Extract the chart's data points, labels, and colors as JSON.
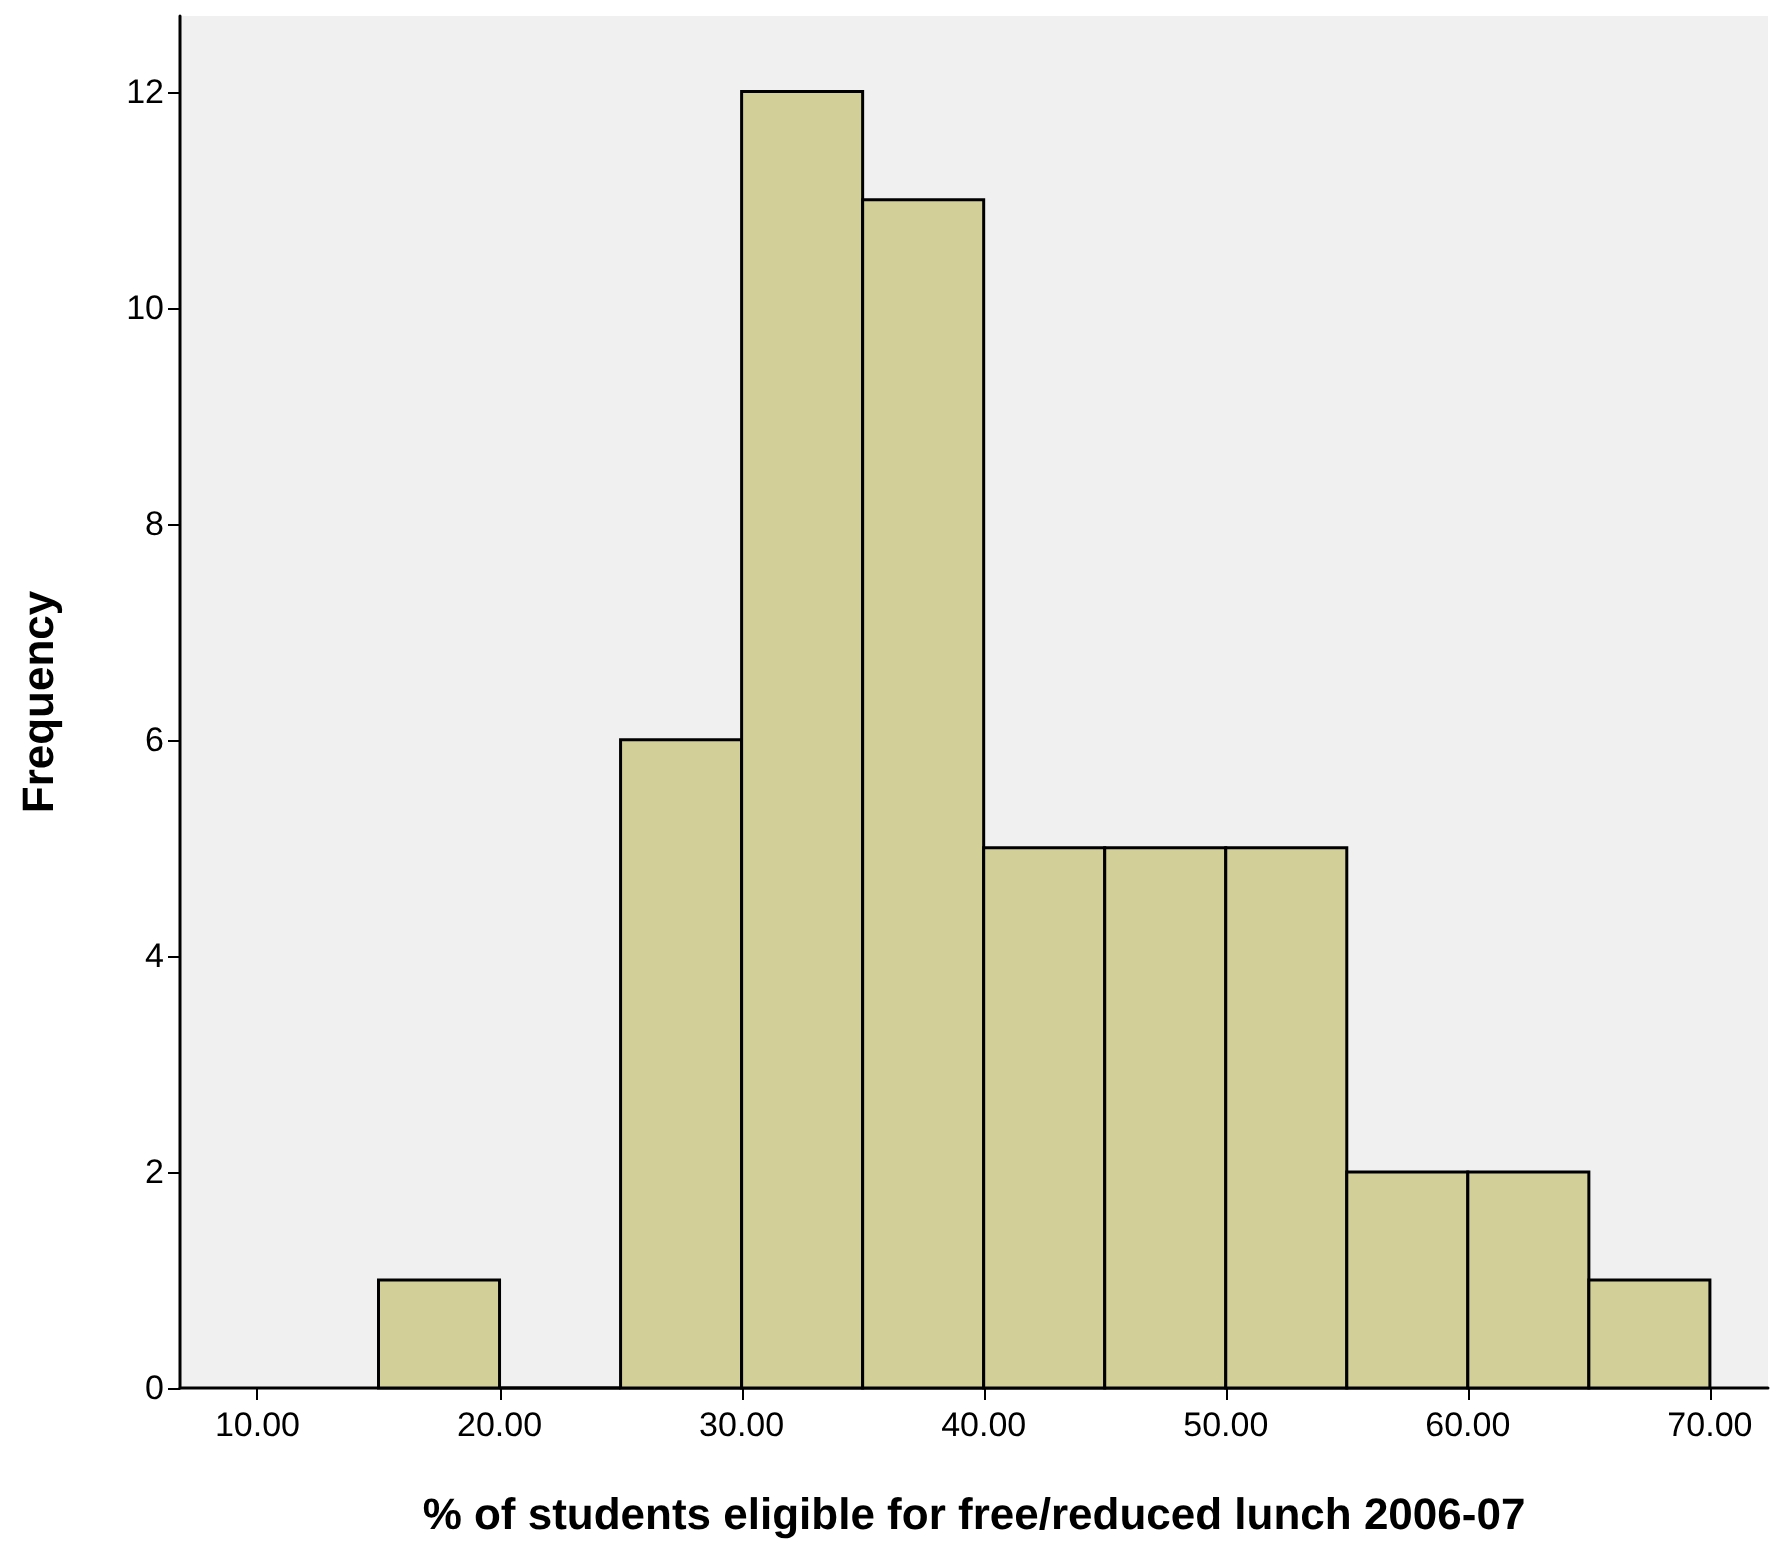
{
  "chart_data": {
    "type": "histogram",
    "xlabel": "% of students eligible for free/reduced lunch 2006-07",
    "ylabel": "Frequency",
    "bins": [
      15,
      20,
      25,
      30,
      35,
      40,
      45,
      50,
      55,
      60,
      65,
      70
    ],
    "values": [
      1,
      0,
      6,
      12,
      11,
      5,
      5,
      5,
      2,
      2,
      1
    ],
    "color": "#d3cf98",
    "xlim": [
      6.8,
      72.4
    ],
    "ylim": [
      0,
      12.7
    ],
    "xticks": [
      {
        "value": 10,
        "label": "10.00"
      },
      {
        "value": 20,
        "label": "20.00"
      },
      {
        "value": 30,
        "label": "30.00"
      },
      {
        "value": 40,
        "label": "40.00"
      },
      {
        "value": 50,
        "label": "50.00"
      },
      {
        "value": 60,
        "label": "60.00"
      },
      {
        "value": 70,
        "label": "70.00"
      }
    ],
    "yticks": [
      0,
      2,
      4,
      6,
      8,
      10,
      12
    ],
    "grid": false
  }
}
